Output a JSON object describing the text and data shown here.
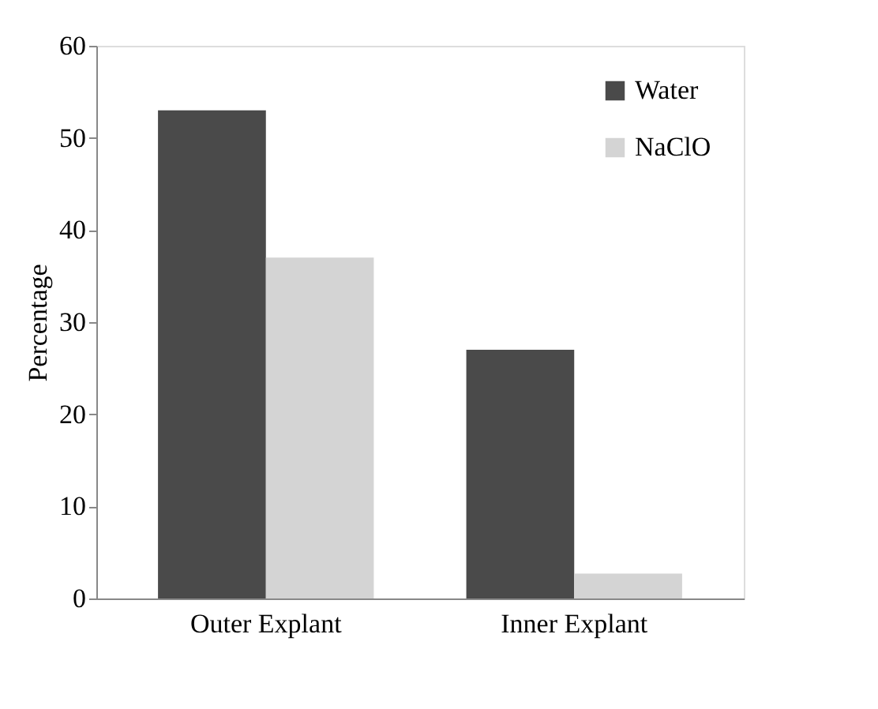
{
  "chart_data": {
    "type": "bar",
    "ylabel": "Percentage",
    "categories": [
      "Outer Explant",
      "Inner Explant"
    ],
    "series": [
      {
        "name": "Water",
        "color": "#4a4a4a",
        "values": [
          53,
          27
        ]
      },
      {
        "name": "NaClO",
        "color": "#d4d4d4",
        "values": [
          37,
          2.7
        ]
      }
    ],
    "ylim": [
      0,
      60
    ],
    "yticks": [
      0,
      10,
      20,
      30,
      40,
      50,
      60
    ],
    "grid": false,
    "legend": "top right"
  }
}
